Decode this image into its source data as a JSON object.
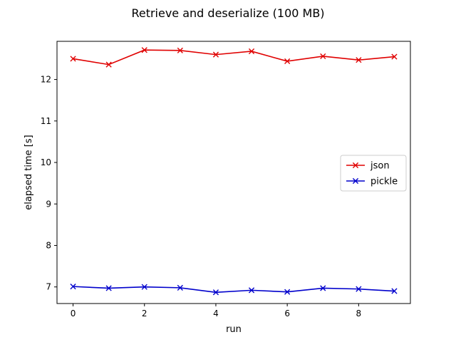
{
  "chart_data": {
    "type": "line",
    "title": "Retrieve and deserialize (100 MB)",
    "xlabel": "run",
    "ylabel": "elapsed time [s]",
    "x": [
      0,
      1,
      2,
      3,
      4,
      5,
      6,
      7,
      8,
      9
    ],
    "xlim": [
      -0.45,
      9.45
    ],
    "ylim": [
      6.6,
      12.92
    ],
    "xticks": [
      0,
      2,
      4,
      6,
      8
    ],
    "yticks": [
      7,
      8,
      9,
      10,
      11,
      12
    ],
    "grid": false,
    "legend_position": "center-right",
    "series": [
      {
        "name": "json",
        "color": "#e00000",
        "marker": "x",
        "values": [
          12.5,
          12.36,
          12.71,
          12.7,
          12.6,
          12.68,
          12.44,
          12.56,
          12.47,
          12.55
        ]
      },
      {
        "name": "pickle",
        "color": "#0000cc",
        "marker": "x",
        "values": [
          7.01,
          6.97,
          7.0,
          6.98,
          6.87,
          6.92,
          6.88,
          6.97,
          6.95,
          6.9
        ]
      }
    ]
  }
}
